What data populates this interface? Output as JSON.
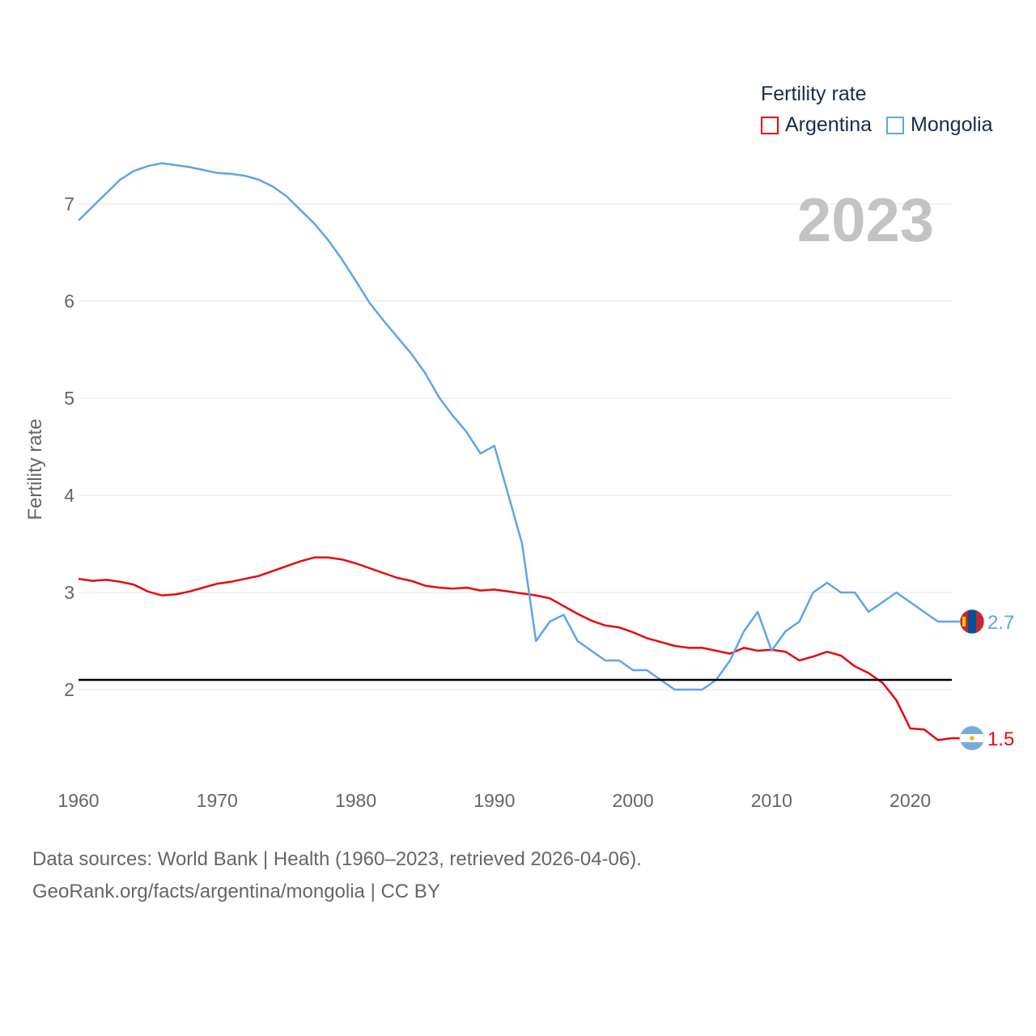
{
  "chart_data": {
    "type": "line",
    "title": "Fertility rate",
    "ylabel": "Fertility rate",
    "xlabel": "",
    "current_year": "2023",
    "xlim": [
      1960,
      2023
    ],
    "ylim": [
      1.1,
      7.6
    ],
    "yticks": [
      2,
      3,
      4,
      5,
      6,
      7
    ],
    "xticks": [
      1960,
      1970,
      1980,
      1990,
      2000,
      2010,
      2020
    ],
    "reference_line": 2.1,
    "grid": true,
    "legend_position": "top-right",
    "x": [
      1960,
      1961,
      1962,
      1963,
      1964,
      1965,
      1966,
      1967,
      1968,
      1969,
      1970,
      1971,
      1972,
      1973,
      1974,
      1975,
      1976,
      1977,
      1978,
      1979,
      1980,
      1981,
      1982,
      1983,
      1984,
      1985,
      1986,
      1987,
      1988,
      1989,
      1990,
      1991,
      1992,
      1993,
      1994,
      1995,
      1996,
      1997,
      1998,
      1999,
      2000,
      2001,
      2002,
      2003,
      2004,
      2005,
      2006,
      2007,
      2008,
      2009,
      2010,
      2011,
      2012,
      2013,
      2014,
      2015,
      2016,
      2017,
      2018,
      2019,
      2020,
      2021,
      2022,
      2023
    ],
    "series": [
      {
        "name": "Argentina",
        "color": "#e8070f",
        "end_label": "1.5",
        "flag": "argentina-flag-icon",
        "values": [
          3.14,
          3.12,
          3.13,
          3.11,
          3.08,
          3.01,
          2.97,
          2.98,
          3.01,
          3.05,
          3.09,
          3.11,
          3.14,
          3.17,
          3.22,
          3.27,
          3.32,
          3.36,
          3.36,
          3.34,
          3.3,
          3.25,
          3.2,
          3.15,
          3.12,
          3.07,
          3.05,
          3.04,
          3.05,
          3.02,
          3.03,
          3.01,
          2.99,
          2.97,
          2.94,
          2.86,
          2.78,
          2.71,
          2.66,
          2.64,
          2.59,
          2.53,
          2.49,
          2.45,
          2.43,
          2.43,
          2.4,
          2.37,
          2.43,
          2.4,
          2.41,
          2.39,
          2.3,
          2.34,
          2.39,
          2.35,
          2.24,
          2.17,
          2.07,
          1.89,
          1.6,
          1.59,
          1.48,
          1.5
        ]
      },
      {
        "name": "Mongolia",
        "color": "#5da5e8",
        "end_label": "2.7",
        "flag": "mongolia-flag-icon",
        "values": [
          6.83,
          6.97,
          7.11,
          7.25,
          7.34,
          7.39,
          7.42,
          7.4,
          7.38,
          7.35,
          7.32,
          7.31,
          7.29,
          7.25,
          7.18,
          7.08,
          6.94,
          6.8,
          6.63,
          6.43,
          6.21,
          5.98,
          5.8,
          5.63,
          5.46,
          5.26,
          5.01,
          4.82,
          4.65,
          4.43,
          4.51,
          4.01,
          3.5,
          2.5,
          2.7,
          2.77,
          2.5,
          2.4,
          2.3,
          2.3,
          2.2,
          2.2,
          2.1,
          2.0,
          2.0,
          2.0,
          2.1,
          2.3,
          2.6,
          2.8,
          2.4,
          2.6,
          2.7,
          3.0,
          3.1,
          3.0,
          3.0,
          2.8,
          2.9,
          3.0,
          2.9,
          2.8,
          2.7,
          2.7
        ]
      }
    ]
  },
  "legend": {
    "title": "Fertility rate",
    "items": [
      {
        "label": "Argentina",
        "color": "#e8070f"
      },
      {
        "label": "Mongolia",
        "color": "#5da5e8"
      }
    ]
  },
  "footer": {
    "line1": "Data sources: World Bank | Health (1960–2023, retrieved 2026-04-06).",
    "line2": "GeoRank.org/facts/argentina/mongolia | CC BY"
  }
}
